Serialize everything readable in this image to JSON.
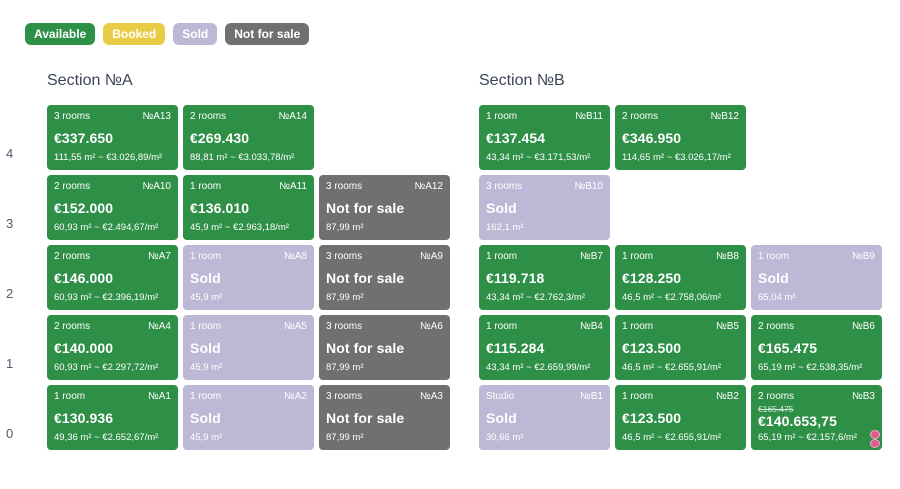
{
  "legend": [
    {
      "label": "Available",
      "status": "available"
    },
    {
      "label": "Booked",
      "status": "booked"
    },
    {
      "label": "Sold",
      "status": "sold"
    },
    {
      "label": "Not for sale",
      "status": "nfs"
    }
  ],
  "colors": {
    "available": "#2e8f47",
    "booked": "#e8cc45",
    "sold": "#bcb9d6",
    "not_for_sale": "#707070"
  },
  "floors": [
    "4",
    "3",
    "2",
    "1",
    "0"
  ],
  "sections": [
    {
      "title": "Section №A",
      "rows": [
        [
          {
            "status": "available",
            "rooms": "3 rooms",
            "num": "№A13",
            "price": "€337.650",
            "area": "111,55 m² ~ €3.026,89/m²"
          },
          {
            "status": "available",
            "rooms": "2 rooms",
            "num": "№A14",
            "price": "€269.430",
            "area": "88,81 m² ~ €3.033,78/m²"
          },
          null
        ],
        [
          {
            "status": "available",
            "rooms": "2 rooms",
            "num": "№A10",
            "price": "€152.000",
            "area": "60,93 m² ~ €2.494,67/m²"
          },
          {
            "status": "available",
            "rooms": "1 room",
            "num": "№A11",
            "price": "€136.010",
            "area": "45,9 m² ~ €2.963,18/m²"
          },
          {
            "status": "nfs",
            "rooms": "3 rooms",
            "num": "№A12",
            "price": "Not for sale",
            "area": "87,99 m²"
          }
        ],
        [
          {
            "status": "available",
            "rooms": "2 rooms",
            "num": "№A7",
            "price": "€146.000",
            "area": "60,93 m² ~ €2.396,19/m²"
          },
          {
            "status": "sold",
            "rooms": "1 room",
            "num": "№A8",
            "price": "Sold",
            "area": "45,9 m²"
          },
          {
            "status": "nfs",
            "rooms": "3 rooms",
            "num": "№A9",
            "price": "Not for sale",
            "area": "87,99 m²"
          }
        ],
        [
          {
            "status": "available",
            "rooms": "2 rooms",
            "num": "№A4",
            "price": "€140.000",
            "area": "60,93 m² ~ €2.297,72/m²"
          },
          {
            "status": "sold",
            "rooms": "1 room",
            "num": "№A5",
            "price": "Sold",
            "area": "45,9 m²"
          },
          {
            "status": "nfs",
            "rooms": "3 rooms",
            "num": "№A6",
            "price": "Not for sale",
            "area": "87,99 m²"
          }
        ],
        [
          {
            "status": "available",
            "rooms": "1 room",
            "num": "№A1",
            "price": "€130.936",
            "area": "49,36 m² ~ €2.652,67/m²"
          },
          {
            "status": "sold",
            "rooms": "1 room",
            "num": "№A2",
            "price": "Sold",
            "area": "45,9 m²"
          },
          {
            "status": "nfs",
            "rooms": "3 rooms",
            "num": "№A3",
            "price": "Not for sale",
            "area": "87,99 m²"
          }
        ]
      ]
    },
    {
      "title": "Section №B",
      "rows": [
        [
          {
            "status": "available",
            "rooms": "1 room",
            "num": "№B11",
            "price": "€137.454",
            "area": "43,34 m² ~ €3.171,53/m²"
          },
          {
            "status": "available",
            "rooms": "2 rooms",
            "num": "№B12",
            "price": "€346.950",
            "area": "114,65 m² ~ €3.026,17/m²"
          },
          null
        ],
        [
          {
            "status": "sold",
            "rooms": "3 rooms",
            "num": "№B10",
            "price": "Sold",
            "area": "162,1 m²"
          },
          null,
          null
        ],
        [
          {
            "status": "available",
            "rooms": "1 room",
            "num": "№B7",
            "price": "€119.718",
            "area": "43,34 m² ~ €2.762,3/m²"
          },
          {
            "status": "available",
            "rooms": "1 room",
            "num": "№B8",
            "price": "€128.250",
            "area": "46,5 m² ~ €2.758,06/m²"
          },
          {
            "status": "sold",
            "rooms": "1 room",
            "num": "№B9",
            "price": "Sold",
            "area": "65,04 m²"
          }
        ],
        [
          {
            "status": "available",
            "rooms": "1 room",
            "num": "№B4",
            "price": "€115.284",
            "area": "43,34 m² ~ €2.659,99/m²"
          },
          {
            "status": "available",
            "rooms": "1 room",
            "num": "№B5",
            "price": "€123.500",
            "area": "46,5 m² ~ €2.655,91/m²"
          },
          {
            "status": "available",
            "rooms": "2 rooms",
            "num": "№B6",
            "price": "€165.475",
            "area": "65,19 m² ~ €2.538,35/m²"
          }
        ],
        [
          {
            "status": "sold",
            "rooms": "Studio",
            "num": "№B1",
            "price": "Sold",
            "area": "30,66 m²"
          },
          {
            "status": "available",
            "rooms": "1 room",
            "num": "№B2",
            "price": "€123.500",
            "area": "46,5 m² ~ €2.655,91/m²"
          },
          {
            "status": "available",
            "rooms": "2 rooms",
            "num": "№B3",
            "old_price": "€165.475",
            "price": "€140.653,75",
            "area": "65,19 m² ~ €2.157,6/m²",
            "promo": true,
            "icon": "promo-icon"
          }
        ]
      ]
    }
  ]
}
